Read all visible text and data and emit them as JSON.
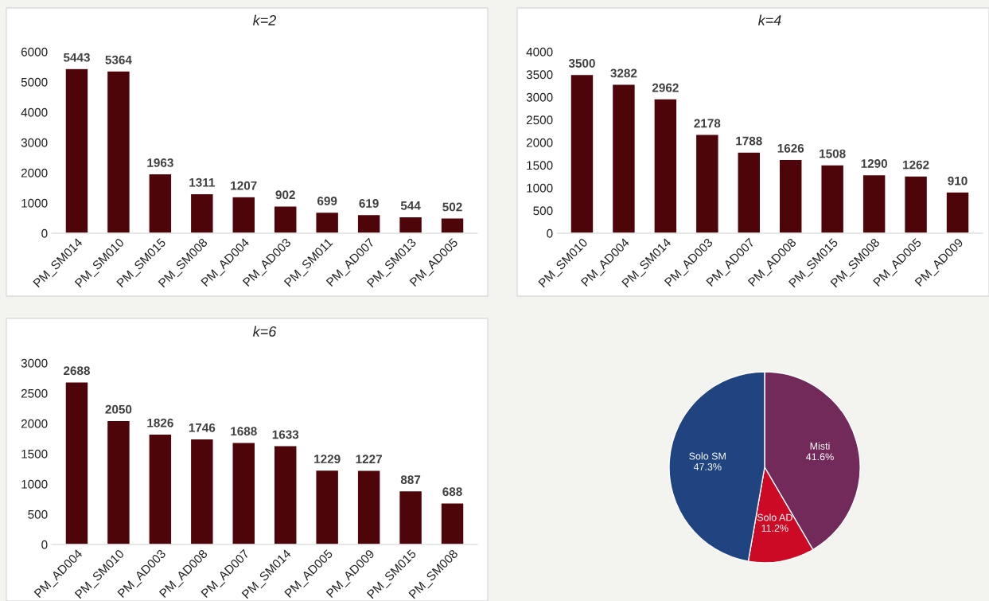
{
  "chart_data": [
    {
      "type": "bar",
      "title": "k=2",
      "categories": [
        "PM_SM014",
        "PM_SM010",
        "PM_SM015",
        "PM_SM008",
        "PM_AD004",
        "PM_AD003",
        "PM_SM011",
        "PM_AD007",
        "PM_SM013",
        "PM_AD005"
      ],
      "values": [
        5443,
        5364,
        1963,
        1311,
        1207,
        902,
        699,
        619,
        544,
        502
      ],
      "color": "#4e0509",
      "ylim": [
        0,
        6000
      ],
      "yticks": [
        0,
        1000,
        2000,
        3000,
        4000,
        5000,
        6000
      ],
      "data_labels": true,
      "grid": false,
      "legend": false
    },
    {
      "type": "bar",
      "title": "k=4",
      "categories": [
        "PM_SM010",
        "PM_AD004",
        "PM_SM014",
        "PM_AD003",
        "PM_AD007",
        "PM_AD008",
        "PM_SM015",
        "PM_SM008",
        "PM_AD005",
        "PM_AD009"
      ],
      "values": [
        3500,
        3282,
        2962,
        2178,
        1788,
        1626,
        1508,
        1290,
        1262,
        910
      ],
      "color": "#4e0509",
      "ylim": [
        0,
        4000
      ],
      "yticks": [
        0,
        500,
        1000,
        1500,
        2000,
        2500,
        3000,
        3500,
        4000
      ],
      "data_labels": true,
      "grid": false,
      "legend": false
    },
    {
      "type": "bar",
      "title": "k=6",
      "categories": [
        "PM_AD004",
        "PM_SM010",
        "PM_AD003",
        "PM_AD008",
        "PM_AD007",
        "PM_SM014",
        "PM_AD005",
        "PM_AD009",
        "PM_SM015",
        "PM_SM008"
      ],
      "values": [
        2688,
        2050,
        1826,
        1746,
        1688,
        1633,
        1229,
        1227,
        887,
        688
      ],
      "color": "#4e0509",
      "ylim": [
        0,
        3000
      ],
      "yticks": [
        0,
        500,
        1000,
        1500,
        2000,
        2500,
        3000
      ],
      "data_labels": true,
      "grid": false,
      "legend": false
    },
    {
      "type": "pie",
      "categories": [
        "Misti",
        "Solo AD",
        "Solo SM"
      ],
      "values": [
        41.6,
        11.2,
        47.3
      ],
      "value_labels": [
        "41.6%",
        "11.2%",
        "47.3%"
      ],
      "colors": [
        "#722a5a",
        "#cc0a26",
        "#1f4480"
      ],
      "legend": false
    }
  ]
}
